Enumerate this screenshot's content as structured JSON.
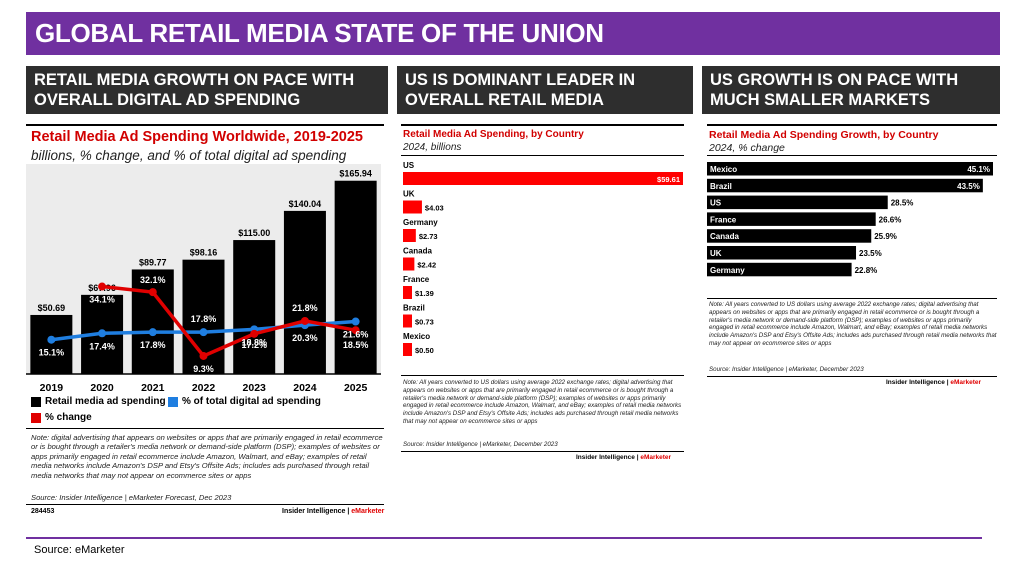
{
  "page": {
    "title": "GLOBAL RETAIL MEDIA STATE OF THE UNION",
    "source": "Source: eMarketer",
    "accent": "#7030a0"
  },
  "panels": [
    {
      "header": "RETAIL MEDIA GROWTH ON PACE WITH\nOVERALL DIGITAL AD SPENDING"
    },
    {
      "header": "US IS DOMINANT LEADER IN\nOVERALL RETAIL MEDIA"
    },
    {
      "header": "US GROWTH IS ON PACE WITH\nMUCH SMALLER MARKETS"
    }
  ],
  "chart_data": [
    {
      "type": "bar",
      "title": "Retail Media Ad Spending Worldwide, 2019-2025",
      "subtitle": "billions, % change, and % of total digital ad spending",
      "categories": [
        "2019",
        "2020",
        "2021",
        "2022",
        "2023",
        "2024",
        "2025"
      ],
      "series": [
        {
          "name": "Retail media ad spending",
          "type": "bar",
          "color": "#000000",
          "values": [
            50.69,
            67.96,
            89.77,
            98.16,
            115.0,
            140.04,
            165.94
          ],
          "labels": [
            "$50.69",
            "$67.96",
            "$89.77",
            "$98.16",
            "$115.00",
            "$140.04",
            "$165.94"
          ]
        },
        {
          "name": "% of total digital ad spending",
          "type": "line",
          "color": "#1f7ee0",
          "values": [
            15.1,
            17.4,
            17.8,
            17.8,
            18.8,
            20.3,
            21.6
          ],
          "labels": [
            "15.1%",
            "17.4%",
            "17.8%",
            "17.8%",
            "18.8%",
            "20.3%",
            "21.6%"
          ]
        },
        {
          "name": "% change",
          "type": "line",
          "color": "#e00000",
          "values": [
            null,
            34.1,
            32.1,
            9.3,
            17.2,
            21.8,
            18.5
          ],
          "labels": [
            "",
            "34.1%",
            "32.1%",
            "9.3%",
            "17.2%",
            "21.8%",
            "18.5%"
          ]
        }
      ],
      "legend": [
        "Retail media ad spending",
        "% change",
        "% of total digital ad spending"
      ],
      "note": "Note: digital advertising that appears on websites or apps that are primarily engaged in retail ecommerce or is bought through a retailer's media network or demand-side platform (DSP); examples of websites or apps primarily engaged in retail ecommerce include Amazon, Walmart, and eBay; examples of retail media networks include Amazon's DSP and Etsy's Offsite Ads; includes ads purchased through retail media networks that may not appear on ecommerce sites or apps",
      "source": "Source: Insider Intelligence | eMarketer Forecast, Dec 2023",
      "id_text": "284453",
      "brand": "Insider Intelligence",
      "brand_em": "eMarketer"
    },
    {
      "type": "bar",
      "orientation": "horizontal",
      "title": "Retail Media Ad Spending, by Country",
      "subtitle": "2024, billions",
      "categories": [
        "US",
        "UK",
        "Germany",
        "Canada",
        "France",
        "Brazil",
        "Mexico"
      ],
      "values": [
        59.61,
        4.03,
        2.73,
        2.42,
        1.39,
        0.73,
        0.5
      ],
      "labels": [
        "$59.61",
        "$4.03",
        "$2.73",
        "$2.42",
        "$1.39",
        "$0.73",
        "$0.50"
      ],
      "color": "#ff0000",
      "note": "Note: All years converted to US dollars using average 2022 exchange rates; digital advertising that appears on websites or apps that are primarily engaged in retail ecommerce or is bought through a retailer's media network or demand-side platform (DSP); examples of websites or apps primarily engaged in retail ecommerce include Amazon, Walmart, and eBay; examples of retail media networks include Amazon's DSP and Etsy's Offsite Ads; includes ads purchased through retail media networks that may not appear on ecommerce sites or apps",
      "source": "Source: Insider Intelligence | eMarketer, December 2023",
      "brand": "Insider Intelligence",
      "brand_em": "eMarketer"
    },
    {
      "type": "bar",
      "orientation": "horizontal",
      "title": "Retail Media Ad Spending Growth, by Country",
      "subtitle": "2024, % change",
      "categories": [
        "Mexico",
        "Brazil",
        "US",
        "France",
        "Canada",
        "UK",
        "Germany"
      ],
      "values": [
        45.1,
        43.5,
        28.5,
        26.6,
        25.9,
        23.5,
        22.8
      ],
      "labels": [
        "45.1%",
        "43.5%",
        "28.5%",
        "26.6%",
        "25.9%",
        "23.5%",
        "22.8%"
      ],
      "color": "#000000",
      "note": "Note: All years converted to US dollars using average 2022 exchange rates; digital advertising that appears on websites or apps that are primarily engaged in retail ecommerce or is bought through a retailer's media network or demand-side platform (DSP); examples of websites or apps primarily engaged in retail ecommerce include Amazon, Walmart, and eBay; examples of retail media networks include Amazon's DSP and Etsy's Offsite Ads; includes ads purchased through retail media networks that may not appear on ecommerce sites or apps",
      "source": "Source: Insider Intelligence | eMarketer, December 2023",
      "brand": "Insider Intelligence",
      "brand_em": "eMarketer"
    }
  ]
}
